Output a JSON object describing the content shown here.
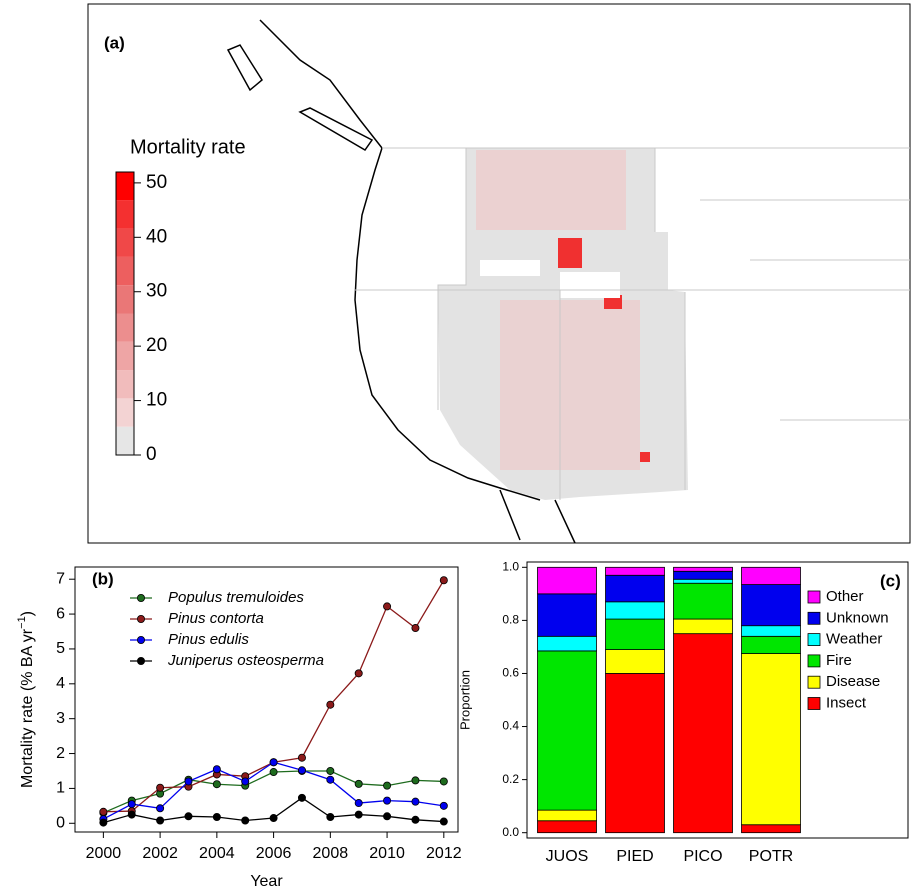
{
  "chart_data": [
    {
      "type": "map",
      "title": "(a)",
      "colorbar": {
        "title": "Mortality rate",
        "lim": [
          0,
          52
        ],
        "ticks": [
          0,
          10,
          20,
          30,
          40,
          50
        ],
        "colors": [
          "#e6e6e6",
          "#f3d3d3",
          "#f1bcbc",
          "#eea5a5",
          "#ec8e8e",
          "#ea7777",
          "#ed5f5f",
          "#f04848",
          "#f43030",
          "#ff0000"
        ]
      }
    },
    {
      "type": "line",
      "title": "(b)",
      "xlabel": "Year",
      "ylabel": "Mortality rate (% BA yr",
      "ylabel_sup": "−1",
      "ylabel_end": ")",
      "x": [
        2000,
        2001,
        2002,
        2003,
        2004,
        2005,
        2006,
        2007,
        2008,
        2009,
        2010,
        2011,
        2012
      ],
      "xlim": [
        1999,
        2012.5
      ],
      "xticks": [
        2000,
        2002,
        2004,
        2006,
        2008,
        2010,
        2012
      ],
      "ylim": [
        -0.25,
        7.35
      ],
      "yticks": [
        0,
        1,
        2,
        3,
        4,
        5,
        6,
        7
      ],
      "series": [
        {
          "name": "Populus tremuloides",
          "color": "#1e6b1e",
          "values": [
            0.3,
            0.65,
            0.85,
            1.25,
            1.12,
            1.08,
            1.47,
            1.5,
            1.5,
            1.13,
            1.08,
            1.23,
            1.2
          ]
        },
        {
          "name": "Pinus contorta",
          "color": "#8b1a1a",
          "values": [
            0.33,
            0.35,
            1.02,
            1.05,
            1.4,
            1.35,
            1.75,
            1.88,
            3.4,
            4.3,
            6.22,
            5.6,
            6.97
          ]
        },
        {
          "name": "Pinus edulis",
          "color": "#0000ee",
          "values": [
            0.12,
            0.55,
            0.43,
            1.2,
            1.55,
            1.2,
            1.75,
            1.52,
            1.25,
            0.58,
            0.65,
            0.62,
            0.5
          ]
        },
        {
          "name": "Juniperus osteosperma",
          "color": "#000000",
          "values": [
            0.02,
            0.25,
            0.08,
            0.2,
            0.18,
            0.08,
            0.15,
            0.73,
            0.18,
            0.25,
            0.2,
            0.1,
            0.05
          ]
        }
      ]
    },
    {
      "type": "stacked_bar",
      "title": "(c)",
      "ylabel": "Proportion",
      "categories": [
        "JUOS",
        "PIED",
        "PICO",
        "POTR"
      ],
      "ylim": [
        -0.02,
        1.02
      ],
      "yticks": [
        {
          "value": 0,
          "label": "0.0"
        },
        {
          "value": 0.2,
          "label": "0.2"
        },
        {
          "value": 0.4,
          "label": "0.4"
        },
        {
          "value": 0.6,
          "label": "0.6"
        },
        {
          "value": 0.8,
          "label": "0.8"
        },
        {
          "value": 1,
          "label": "1.0"
        }
      ],
      "series": [
        {
          "name": "Insect",
          "color": "#ff0000",
          "values": [
            0.045,
            0.6,
            0.75,
            0.03
          ]
        },
        {
          "name": "Disease",
          "color": "#ffff00",
          "values": [
            0.04,
            0.09,
            0.055,
            0.645
          ]
        },
        {
          "name": "Fire",
          "color": "#00e600",
          "values": [
            0.6,
            0.115,
            0.135,
            0.065
          ]
        },
        {
          "name": "Weather",
          "color": "#00ffff",
          "values": [
            0.055,
            0.065,
            0.015,
            0.04
          ]
        },
        {
          "name": "Unknown",
          "color": "#0000ee",
          "values": [
            0.16,
            0.1,
            0.03,
            0.155
          ]
        },
        {
          "name": "Other",
          "color": "#ff00ff",
          "values": [
            0.1,
            0.03,
            0.015,
            0.065
          ]
        }
      ]
    }
  ]
}
